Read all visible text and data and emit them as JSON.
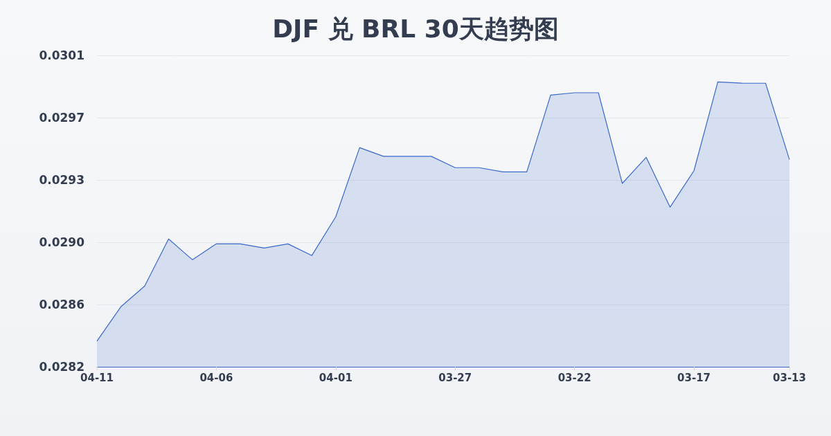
{
  "chart_data": {
    "type": "area",
    "title": "DJF 兑 BRL 30天趋势图",
    "categories": [
      "04-11",
      null,
      null,
      null,
      null,
      "04-06",
      null,
      null,
      null,
      null,
      "04-01",
      null,
      null,
      null,
      null,
      "03-27",
      null,
      null,
      null,
      null,
      "03-22",
      null,
      null,
      null,
      null,
      "03-17",
      null,
      null,
      null,
      "03-13"
    ],
    "values": [
      0.028357,
      0.028566,
      0.028693,
      0.02898,
      0.028853,
      0.02895,
      0.02895,
      0.028925,
      0.02895,
      0.028879,
      0.029115,
      0.029537,
      0.029484,
      0.029484,
      0.029484,
      0.029415,
      0.029415,
      0.029389,
      0.029389,
      0.029858,
      0.029872,
      0.029872,
      0.029319,
      0.029478,
      0.029174,
      0.029396,
      0.029938,
      0.029931,
      0.02993,
      0.029464
    ],
    "color": "#3a68c8",
    "ylim": [
      0.0282,
      0.0301
    ],
    "yticks": [
      0.0282,
      {
        "value": 0.02858,
        "label": "0.0286"
      },
      {
        "value": 0.02896,
        "label": "0.0290"
      },
      {
        "value": 0.02934,
        "label": "0.0293"
      },
      {
        "value": 0.02972,
        "label": "0.0297"
      },
      0.0301
    ],
    "grid": "y",
    "marker": "none"
  }
}
